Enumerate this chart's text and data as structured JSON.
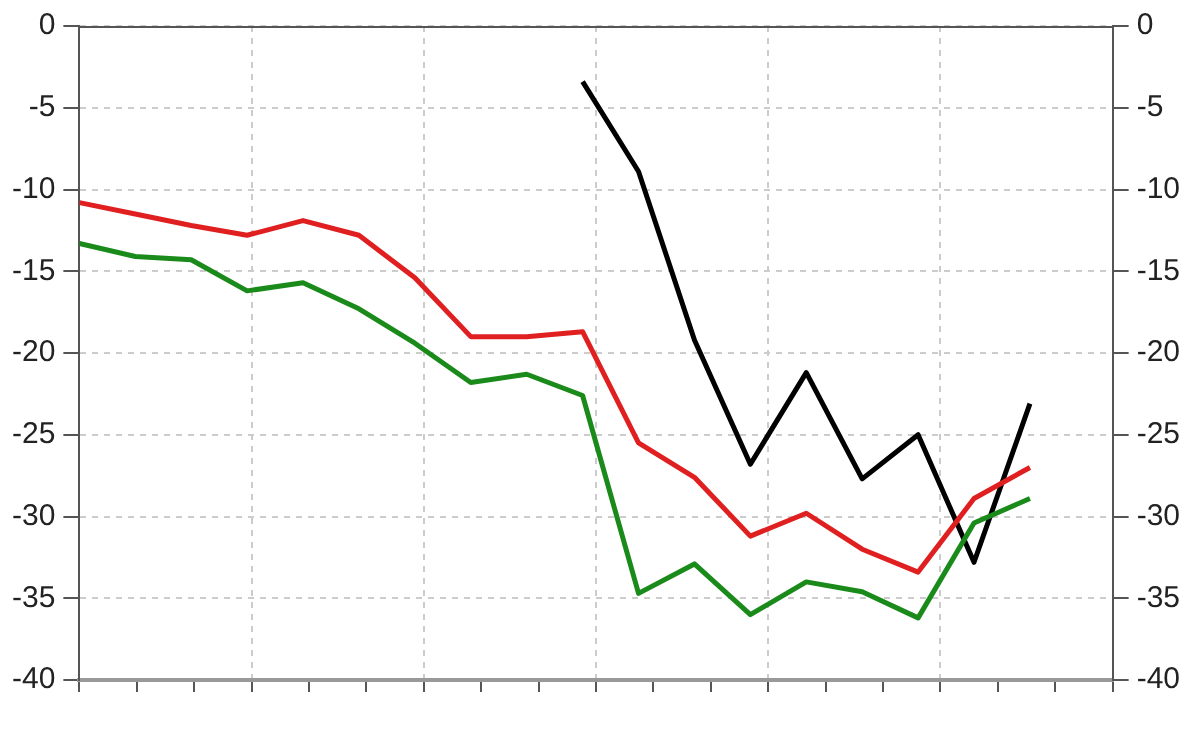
{
  "chart_data": {
    "type": "line",
    "tick_labels": "y",
    "categories": [
      null,
      null,
      null,
      null,
      null,
      null,
      null,
      null,
      null,
      null,
      null,
      null,
      null,
      null,
      null,
      null,
      null,
      null
    ],
    "ylim": [
      -40,
      0
    ],
    "yticks": [
      -40,
      -35,
      -30,
      -25,
      -20,
      -15,
      -10,
      -5,
      0
    ],
    "y2lim": [
      -40,
      0
    ],
    "y2ticks": [
      -40,
      -35,
      -30,
      -25,
      -20,
      -15,
      -10,
      -5,
      0
    ],
    "grid": true,
    "legend": false,
    "marker": "none",
    "line_style": "solid",
    "series": [
      {
        "color": "#1a8a1a",
        "values": [
          -13.3,
          -14.1,
          -14.3,
          -16.2,
          -15.7,
          -17.3,
          -19.4,
          -21.8,
          -21.3,
          -22.6,
          -34.7,
          -32.9,
          -36,
          -34,
          -34.6,
          -36.2,
          -30.4,
          -28.9
        ]
      },
      {
        "color": "#e02020",
        "values": [
          -10.8,
          -11.5,
          -12.2,
          -12.8,
          -11.9,
          -12.8,
          -15.4,
          -19,
          -19,
          -18.7,
          -25.5,
          -27.6,
          -31.2,
          -29.8,
          -32,
          -33.4,
          -28.9,
          -27
        ]
      },
      {
        "color": "#000000",
        "values": [
          null,
          null,
          null,
          null,
          null,
          null,
          null,
          null,
          null,
          -3.4,
          -8.9,
          -19.2,
          -26.8,
          -21.2,
          -27.7,
          -25,
          -32.8,
          -23.1
        ]
      }
    ]
  }
}
